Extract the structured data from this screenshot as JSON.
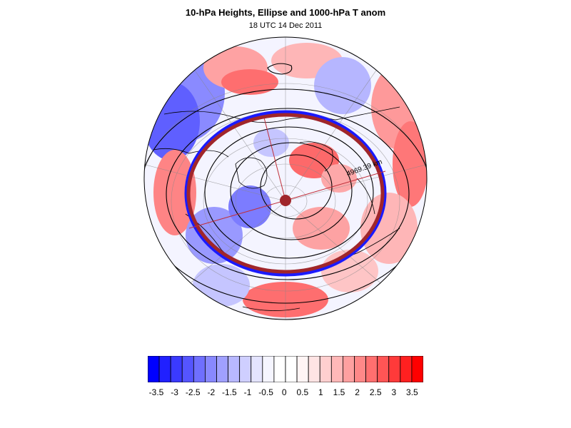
{
  "title": "10-hPa Heights, Ellipse and 1000-hPa T anom",
  "subtitle": "18 UTC 14 Dec 2011",
  "map": {
    "projection": "north-polar-orthographic",
    "distance_label": "4969.39 km",
    "ellipse_color": "#a0262b",
    "contour_color": "#000000",
    "anomaly_field": "1000-hPa T anom"
  },
  "colorbar": {
    "tick_labels": [
      "-3.5",
      "-3",
      "-2.5",
      "-2",
      "-1.5",
      "-1",
      "-0.5",
      "0",
      "0.5",
      "1",
      "1.5",
      "2",
      "2.5",
      "3",
      "3.5"
    ],
    "colors": [
      "#0000ff",
      "#2020ff",
      "#3a3aff",
      "#5555ff",
      "#6f6fff",
      "#8888ff",
      "#a0a0ff",
      "#b8b8ff",
      "#cfcfff",
      "#e4e4ff",
      "#f5f5ff",
      "#ffffff",
      "#ffffff",
      "#fff5f5",
      "#ffe4e4",
      "#ffcfcf",
      "#ffb8b8",
      "#ffa0a0",
      "#ff8888",
      "#ff6f6f",
      "#ff5555",
      "#ff3a3a",
      "#ff2020",
      "#ff0000"
    ]
  }
}
